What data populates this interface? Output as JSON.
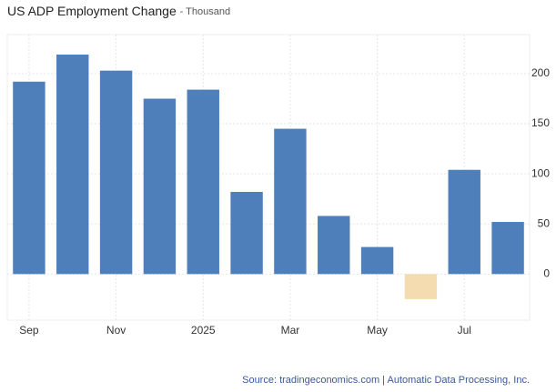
{
  "chart_data": {
    "type": "bar",
    "title": "US ADP Employment Change",
    "subtitle": "- Thousand",
    "categories": [
      "Sep",
      null,
      "Nov",
      null,
      "2025",
      null,
      "Mar",
      null,
      "May",
      null,
      "Jul",
      null
    ],
    "values": [
      192,
      219,
      203,
      175,
      184,
      82,
      145,
      58,
      27,
      -25,
      104,
      52
    ],
    "color": "#4e7fbb",
    "negative_color": "#f5dcb0",
    "ylim": [
      -46,
      239
    ],
    "yticks": [
      0,
      50,
      100,
      150,
      200
    ],
    "grid": true,
    "source": "Source: tradingeconomics.com | Automatic Data Processing, Inc."
  }
}
